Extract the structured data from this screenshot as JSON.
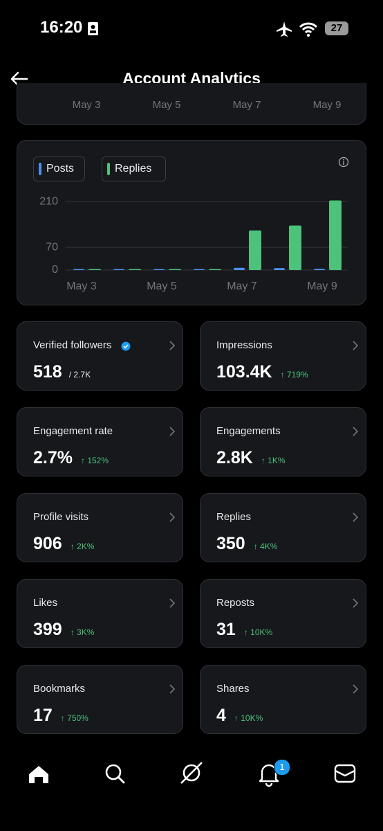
{
  "status_bar": {
    "time": "16:20",
    "battery": "27"
  },
  "header": {
    "title": "Account Analytics"
  },
  "previous_chart_axis": [
    "May 3",
    "May 5",
    "May 7",
    "May 9"
  ],
  "chart_data": {
    "type": "bar",
    "categories": [
      "May 3",
      null,
      "May 5",
      null,
      "May 7",
      null,
      "May 9"
    ],
    "series": [
      {
        "name": "Posts",
        "color": "#4d8ff0",
        "values": [
          1,
          1,
          0,
          1,
          7,
          6,
          4
        ]
      },
      {
        "name": "Replies",
        "color": "#4cc27a",
        "values": [
          2,
          2,
          1,
          1,
          122,
          137,
          214
        ]
      }
    ],
    "ylim": [
      0,
      215
    ],
    "yticks": [
      0,
      70,
      210
    ],
    "grid": true
  },
  "stats": [
    {
      "label": "Verified followers",
      "value": "518",
      "extra": "/ 2.7K",
      "verified": true
    },
    {
      "label": "Impressions",
      "value": "103.4K",
      "change": "↑ 719%"
    },
    {
      "label": "Engagement rate",
      "value": "2.7%",
      "change": "↑ 152%"
    },
    {
      "label": "Engagements",
      "value": "2.8K",
      "change": "↑ 1K%"
    },
    {
      "label": "Profile visits",
      "value": "906",
      "change": "↑ 2K%"
    },
    {
      "label": "Replies",
      "value": "350",
      "change": "↑ 4K%"
    },
    {
      "label": "Likes",
      "value": "399",
      "change": "↑ 3K%"
    },
    {
      "label": "Reposts",
      "value": "31",
      "change": "↑ 10K%"
    },
    {
      "label": "Bookmarks",
      "value": "17",
      "change": "↑ 750%"
    },
    {
      "label": "Shares",
      "value": "4",
      "change": "↑ 10K%"
    }
  ],
  "nav": {
    "notification_badge": "1"
  }
}
